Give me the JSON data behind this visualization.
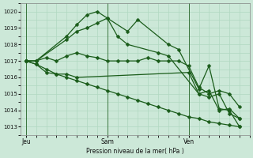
{
  "background_color": "#cce8d8",
  "grid_color": "#b0d8c0",
  "line_color": "#1a5c1a",
  "marker": "D",
  "marker_size": 2.5,
  "linewidth": 0.9,
  "xlabel": "Pression niveau de la mer( hPa )",
  "ylim": [
    1012.5,
    1020.5
  ],
  "yticks": [
    1013,
    1014,
    1015,
    1016,
    1017,
    1018,
    1019,
    1020
  ],
  "xtick_labels": [
    "Jeu",
    "Sam",
    "Ven"
  ],
  "xtick_positions": [
    0,
    8,
    16
  ],
  "vline_positions": [
    0,
    8,
    16
  ],
  "xlim": [
    -0.5,
    22
  ],
  "series": [
    {
      "x": [
        0,
        1,
        4,
        5,
        6,
        7,
        8,
        10,
        11,
        14,
        15,
        17,
        18,
        19,
        20,
        21
      ],
      "y": [
        1017.0,
        1017.0,
        1018.5,
        1019.2,
        1019.8,
        1020.0,
        1019.6,
        1018.8,
        1019.5,
        1018.0,
        1017.7,
        1015.3,
        1016.7,
        1014.1,
        1014.0,
        1013.0
      ]
    },
    {
      "x": [
        0,
        1,
        4,
        5,
        6,
        7,
        8,
        9,
        10,
        13,
        14,
        17,
        18,
        19,
        20,
        21
      ],
      "y": [
        1017.0,
        1017.0,
        1018.3,
        1018.8,
        1019.0,
        1019.3,
        1019.6,
        1018.5,
        1018.0,
        1017.5,
        1017.3,
        1015.0,
        1015.2,
        1014.0,
        1014.1,
        1013.5
      ]
    },
    {
      "x": [
        0,
        1,
        2,
        3,
        4,
        5,
        6,
        7,
        8,
        9,
        10,
        11,
        12,
        13,
        14,
        15,
        16,
        17,
        18,
        19,
        20,
        21
      ],
      "y": [
        1017.0,
        1017.0,
        1017.2,
        1017.0,
        1017.3,
        1017.5,
        1017.3,
        1017.2,
        1017.0,
        1017.0,
        1017.0,
        1017.0,
        1017.2,
        1017.0,
        1017.0,
        1017.0,
        1016.7,
        1015.4,
        1015.0,
        1015.2,
        1015.0,
        1014.2
      ]
    },
    {
      "x": [
        0,
        1,
        2,
        3,
        4,
        5,
        16,
        17,
        18,
        19,
        20,
        21
      ],
      "y": [
        1017.0,
        1016.8,
        1016.3,
        1016.2,
        1016.2,
        1016.0,
        1016.3,
        1015.0,
        1014.8,
        1015.0,
        1013.8,
        1013.5
      ]
    },
    {
      "x": [
        0,
        1,
        2,
        3,
        4,
        5,
        6,
        7,
        8,
        9,
        10,
        11,
        12,
        13,
        14,
        15,
        16,
        17,
        18,
        19,
        20,
        21
      ],
      "y": [
        1017.0,
        1016.8,
        1016.5,
        1016.2,
        1016.0,
        1015.8,
        1015.6,
        1015.4,
        1015.2,
        1015.0,
        1014.8,
        1014.6,
        1014.4,
        1014.2,
        1014.0,
        1013.8,
        1013.6,
        1013.5,
        1013.3,
        1013.2,
        1013.1,
        1013.0
      ]
    }
  ]
}
